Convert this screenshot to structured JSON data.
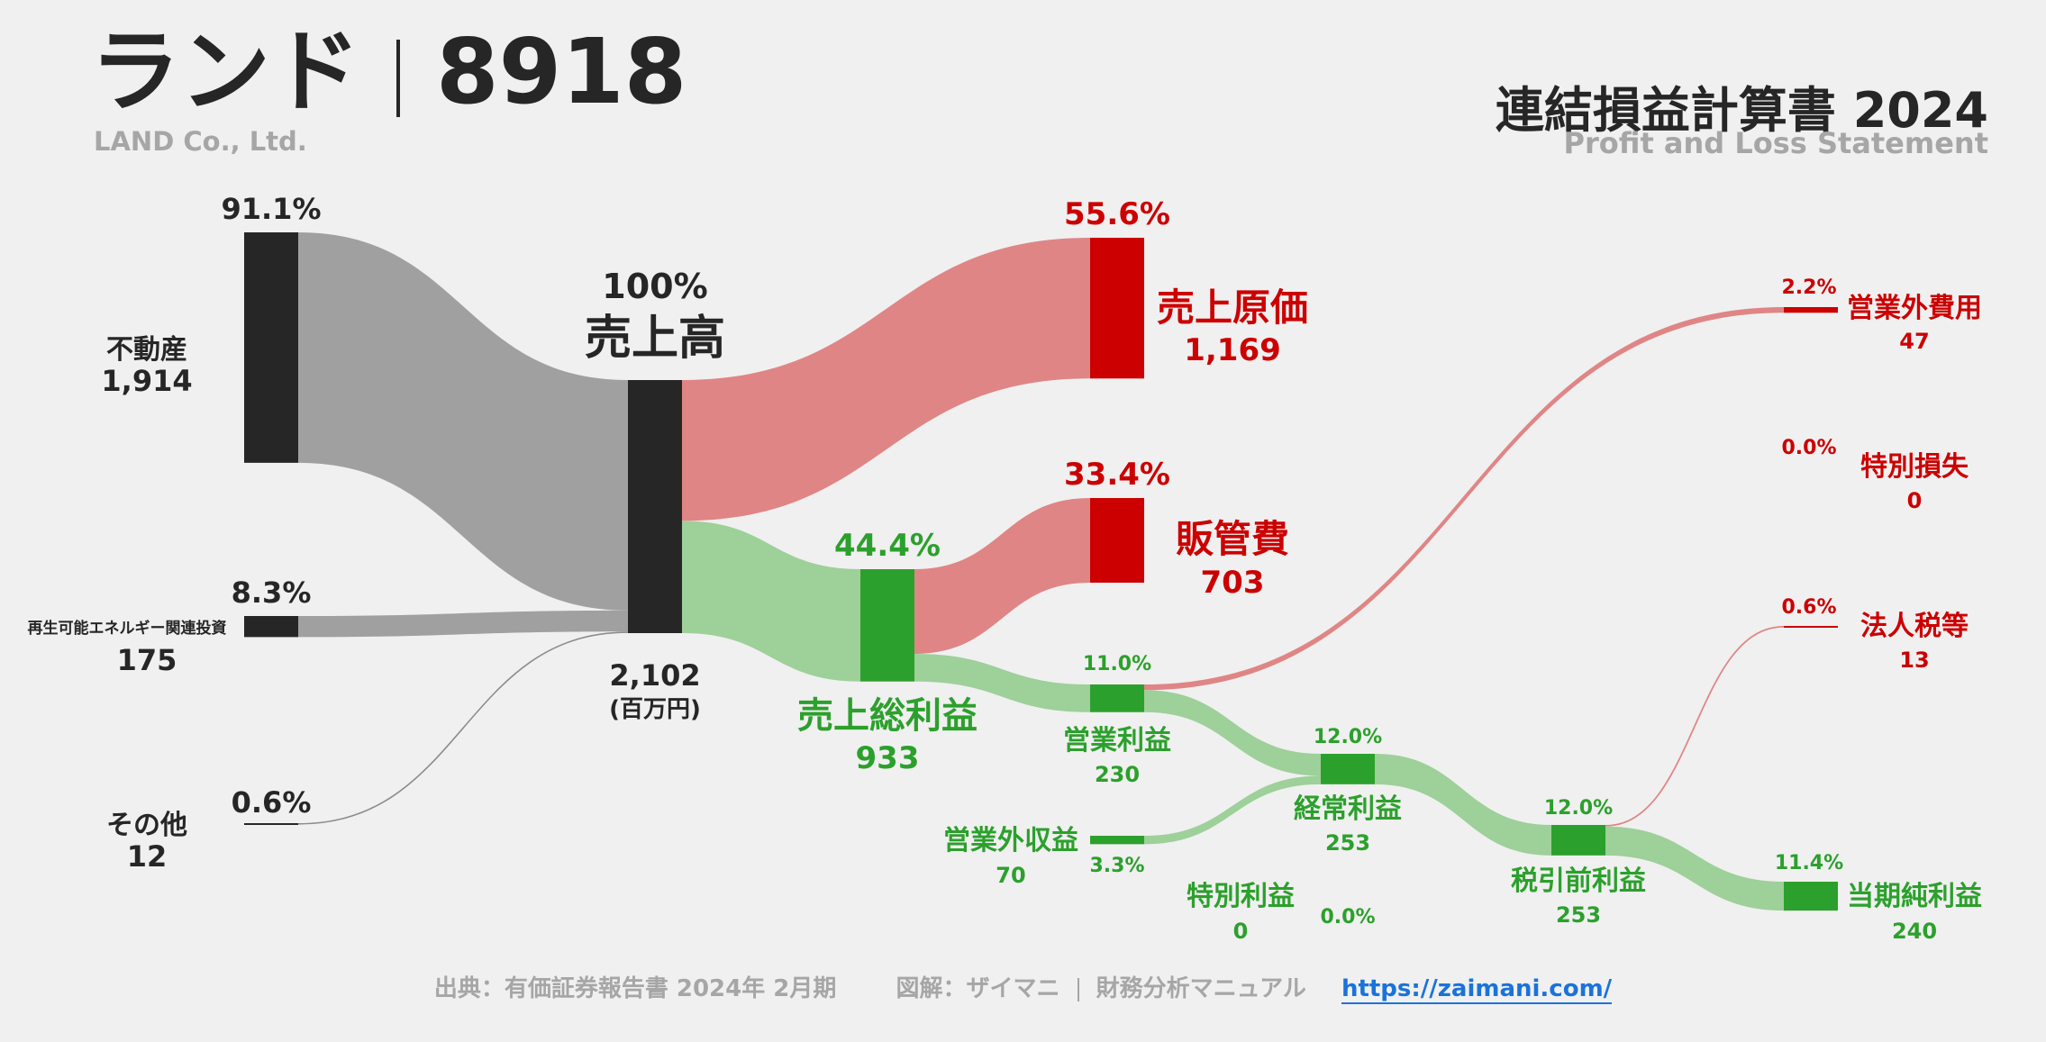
{
  "header": {
    "company_ja": "ランド",
    "ticker": "8918",
    "company_en": "LAND Co., Ltd.",
    "statement_ja": "連結損益計算書 2024",
    "statement_en": "Profit and Loss Statement"
  },
  "footer": {
    "source": "出典：有価証券報告書 2024年 2月期",
    "credit": "図解：ザイマニ",
    "site": "財務分析マニュアル",
    "url": "https://zaimani.com/"
  },
  "colors": {
    "dark": "#262626",
    "grey_flow": "#a0a0a0",
    "red": "#cc0000",
    "red_flow": "#e08585",
    "green": "#2ca02c",
    "green_flow": "#9ed09a"
  },
  "chart_data": {
    "type": "sankey",
    "unit": "(百万円)",
    "nodes": [
      {
        "id": "fudosan",
        "label": "不動産",
        "value": 1914,
        "value_label": "1,914",
        "pct": "91.1%"
      },
      {
        "id": "saiene",
        "label": "再生可能エネルギー関連投資",
        "value": 175,
        "value_label": "175",
        "pct": "8.3%"
      },
      {
        "id": "sonota",
        "label": "その他",
        "value": 12,
        "value_label": "12",
        "pct": "0.6%"
      },
      {
        "id": "revenue",
        "label": "売上高",
        "value": 2102,
        "value_label": "2,102",
        "pct": "100%"
      },
      {
        "id": "cogs",
        "label": "売上原価",
        "value": 1169,
        "value_label": "1,169",
        "pct": "55.6%"
      },
      {
        "id": "gross",
        "label": "売上総利益",
        "value": 933,
        "value_label": "933",
        "pct": "44.4%"
      },
      {
        "id": "sga",
        "label": "販管費",
        "value": 703,
        "value_label": "703",
        "pct": "33.4%"
      },
      {
        "id": "operating",
        "label": "営業利益",
        "value": 230,
        "value_label": "230",
        "pct": "11.0%"
      },
      {
        "id": "nonop_inc",
        "label": "営業外収益",
        "value": 70,
        "value_label": "70",
        "pct": "3.3%"
      },
      {
        "id": "nonop_exp",
        "label": "営業外費用",
        "value": 47,
        "value_label": "47",
        "pct": "2.2%"
      },
      {
        "id": "ordinary",
        "label": "経常利益",
        "value": 253,
        "value_label": "253",
        "pct": "12.0%"
      },
      {
        "id": "special_gain",
        "label": "特別利益",
        "value": 0,
        "value_label": "0",
        "pct": "0.0%"
      },
      {
        "id": "special_loss",
        "label": "特別損失",
        "value": 0,
        "value_label": "0",
        "pct": "0.0%"
      },
      {
        "id": "pretax",
        "label": "税引前利益",
        "value": 253,
        "value_label": "253",
        "pct": "12.0%"
      },
      {
        "id": "tax",
        "label": "法人税等",
        "value": 13,
        "value_label": "13",
        "pct": "0.6%"
      },
      {
        "id": "net",
        "label": "当期純利益",
        "value": 240,
        "value_label": "240",
        "pct": "11.4%"
      }
    ],
    "links": [
      {
        "source": "fudosan",
        "target": "revenue",
        "value": 1914
      },
      {
        "source": "saiene",
        "target": "revenue",
        "value": 175
      },
      {
        "source": "sonota",
        "target": "revenue",
        "value": 12
      },
      {
        "source": "revenue",
        "target": "cogs",
        "value": 1169
      },
      {
        "source": "revenue",
        "target": "gross",
        "value": 933
      },
      {
        "source": "gross",
        "target": "sga",
        "value": 703
      },
      {
        "source": "gross",
        "target": "operating",
        "value": 230
      },
      {
        "source": "operating",
        "target": "nonop_exp",
        "value": 47
      },
      {
        "source": "operating",
        "target": "ordinary",
        "value": 183
      },
      {
        "source": "nonop_inc",
        "target": "ordinary",
        "value": 70
      },
      {
        "source": "ordinary",
        "target": "pretax",
        "value": 253
      },
      {
        "source": "pretax",
        "target": "tax",
        "value": 13
      },
      {
        "source": "pretax",
        "target": "net",
        "value": 240
      }
    ]
  }
}
